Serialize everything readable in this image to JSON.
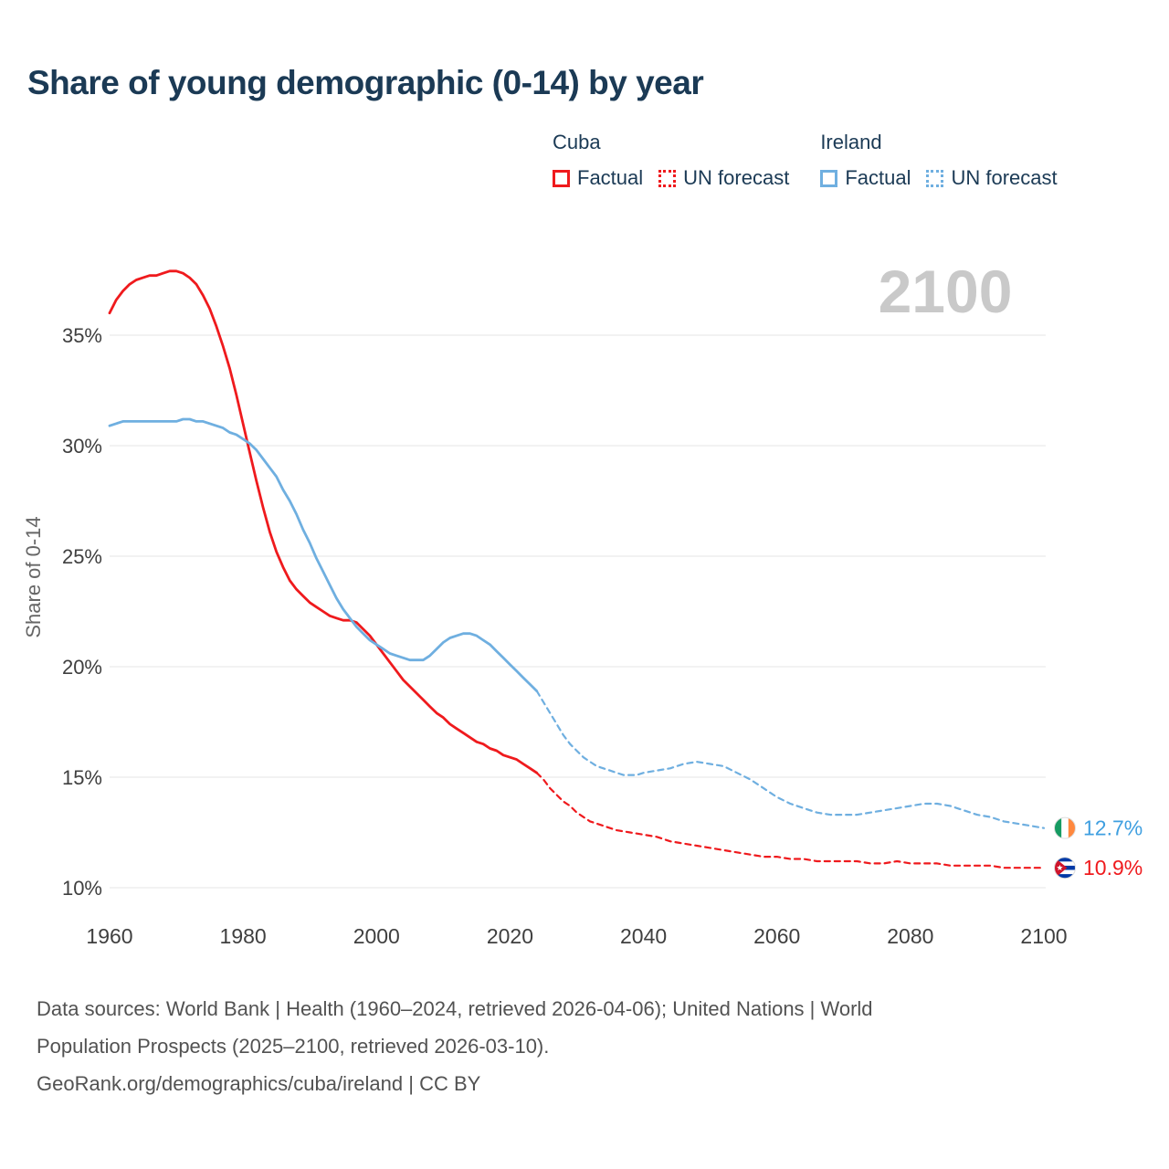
{
  "title": "Share of young demographic (0-14) by year",
  "watermark": "2100",
  "colors": {
    "cuba": "#ef1a1d",
    "ireland": "#6fafe0",
    "ireland_label": "#3f9fe0",
    "title": "#1b3a55",
    "axis_text": "#3f3f3f",
    "ylabel_text": "#666666",
    "grid": "#e6e6e6",
    "watermark": "#c9c9c9",
    "footer": "#525252",
    "flag_ring": "#dddddd"
  },
  "legend": {
    "groups": [
      {
        "country": "Cuba",
        "color_key": "cuba",
        "items": [
          {
            "label": "Factual",
            "style": "solid"
          },
          {
            "label": "UN forecast",
            "style": "dotted"
          }
        ]
      },
      {
        "country": "Ireland",
        "color_key": "ireland",
        "items": [
          {
            "label": "Factual",
            "style": "solid"
          },
          {
            "label": "UN forecast",
            "style": "dotted"
          }
        ]
      }
    ]
  },
  "chart_data": {
    "type": "line",
    "title": "Share of young demographic (0-14) by year",
    "xlabel": "",
    "ylabel": "Share of 0-14",
    "y_ticks": [
      10,
      15,
      20,
      25,
      30,
      35
    ],
    "x_ticks": [
      1960,
      1980,
      2000,
      2020,
      2040,
      2060,
      2080,
      2100
    ],
    "ylim": [
      9.5,
      38.5
    ],
    "xlim": [
      1960,
      2100
    ],
    "grid": "horizontal",
    "series": [
      {
        "name": "Cuba Factual",
        "color_key": "cuba",
        "dash": false,
        "points": [
          [
            1960,
            36.0
          ],
          [
            1961,
            36.6
          ],
          [
            1962,
            37.0
          ],
          [
            1963,
            37.3
          ],
          [
            1964,
            37.5
          ],
          [
            1965,
            37.6
          ],
          [
            1966,
            37.7
          ],
          [
            1967,
            37.7
          ],
          [
            1968,
            37.8
          ],
          [
            1969,
            37.9
          ],
          [
            1970,
            37.9
          ],
          [
            1971,
            37.8
          ],
          [
            1972,
            37.6
          ],
          [
            1973,
            37.3
          ],
          [
            1974,
            36.8
          ],
          [
            1975,
            36.2
          ],
          [
            1976,
            35.4
          ],
          [
            1977,
            34.5
          ],
          [
            1978,
            33.5
          ],
          [
            1979,
            32.3
          ],
          [
            1980,
            31.0
          ],
          [
            1981,
            29.7
          ],
          [
            1982,
            28.4
          ],
          [
            1983,
            27.2
          ],
          [
            1984,
            26.1
          ],
          [
            1985,
            25.2
          ],
          [
            1986,
            24.5
          ],
          [
            1987,
            23.9
          ],
          [
            1988,
            23.5
          ],
          [
            1989,
            23.2
          ],
          [
            1990,
            22.9
          ],
          [
            1991,
            22.7
          ],
          [
            1992,
            22.5
          ],
          [
            1993,
            22.3
          ],
          [
            1994,
            22.2
          ],
          [
            1995,
            22.1
          ],
          [
            1996,
            22.1
          ],
          [
            1997,
            22.0
          ],
          [
            1998,
            21.7
          ],
          [
            1999,
            21.4
          ],
          [
            2000,
            21.0
          ],
          [
            2001,
            20.6
          ],
          [
            2002,
            20.2
          ],
          [
            2003,
            19.8
          ],
          [
            2004,
            19.4
          ],
          [
            2005,
            19.1
          ],
          [
            2006,
            18.8
          ],
          [
            2007,
            18.5
          ],
          [
            2008,
            18.2
          ],
          [
            2009,
            17.9
          ],
          [
            2010,
            17.7
          ],
          [
            2011,
            17.4
          ],
          [
            2012,
            17.2
          ],
          [
            2013,
            17.0
          ],
          [
            2014,
            16.8
          ],
          [
            2015,
            16.6
          ],
          [
            2016,
            16.5
          ],
          [
            2017,
            16.3
          ],
          [
            2018,
            16.2
          ],
          [
            2019,
            16.0
          ],
          [
            2020,
            15.9
          ],
          [
            2021,
            15.8
          ],
          [
            2022,
            15.6
          ],
          [
            2023,
            15.4
          ],
          [
            2024,
            15.2
          ]
        ]
      },
      {
        "name": "Cuba UN forecast",
        "color_key": "cuba",
        "dash": true,
        "points": [
          [
            2024,
            15.2
          ],
          [
            2025,
            14.9
          ],
          [
            2026,
            14.5
          ],
          [
            2027,
            14.2
          ],
          [
            2028,
            13.9
          ],
          [
            2029,
            13.7
          ],
          [
            2030,
            13.4
          ],
          [
            2031,
            13.2
          ],
          [
            2032,
            13.0
          ],
          [
            2033,
            12.9
          ],
          [
            2034,
            12.8
          ],
          [
            2035,
            12.7
          ],
          [
            2036,
            12.6
          ],
          [
            2038,
            12.5
          ],
          [
            2040,
            12.4
          ],
          [
            2042,
            12.3
          ],
          [
            2044,
            12.1
          ],
          [
            2046,
            12.0
          ],
          [
            2048,
            11.9
          ],
          [
            2050,
            11.8
          ],
          [
            2052,
            11.7
          ],
          [
            2054,
            11.6
          ],
          [
            2056,
            11.5
          ],
          [
            2058,
            11.4
          ],
          [
            2060,
            11.4
          ],
          [
            2062,
            11.3
          ],
          [
            2064,
            11.3
          ],
          [
            2066,
            11.2
          ],
          [
            2068,
            11.2
          ],
          [
            2070,
            11.2
          ],
          [
            2072,
            11.2
          ],
          [
            2074,
            11.1
          ],
          [
            2076,
            11.1
          ],
          [
            2078,
            11.2
          ],
          [
            2080,
            11.1
          ],
          [
            2082,
            11.1
          ],
          [
            2084,
            11.1
          ],
          [
            2086,
            11.0
          ],
          [
            2088,
            11.0
          ],
          [
            2090,
            11.0
          ],
          [
            2092,
            11.0
          ],
          [
            2094,
            10.9
          ],
          [
            2096,
            10.9
          ],
          [
            2098,
            10.9
          ],
          [
            2100,
            10.9
          ]
        ]
      },
      {
        "name": "Ireland Factual",
        "color_key": "ireland",
        "dash": false,
        "points": [
          [
            1960,
            30.9
          ],
          [
            1961,
            31.0
          ],
          [
            1962,
            31.1
          ],
          [
            1963,
            31.1
          ],
          [
            1964,
            31.1
          ],
          [
            1965,
            31.1
          ],
          [
            1966,
            31.1
          ],
          [
            1967,
            31.1
          ],
          [
            1968,
            31.1
          ],
          [
            1969,
            31.1
          ],
          [
            1970,
            31.1
          ],
          [
            1971,
            31.2
          ],
          [
            1972,
            31.2
          ],
          [
            1973,
            31.1
          ],
          [
            1974,
            31.1
          ],
          [
            1975,
            31.0
          ],
          [
            1976,
            30.9
          ],
          [
            1977,
            30.8
          ],
          [
            1978,
            30.6
          ],
          [
            1979,
            30.5
          ],
          [
            1980,
            30.3
          ],
          [
            1981,
            30.1
          ],
          [
            1982,
            29.8
          ],
          [
            1983,
            29.4
          ],
          [
            1984,
            29.0
          ],
          [
            1985,
            28.6
          ],
          [
            1986,
            28.0
          ],
          [
            1987,
            27.5
          ],
          [
            1988,
            26.9
          ],
          [
            1989,
            26.2
          ],
          [
            1990,
            25.6
          ],
          [
            1991,
            24.9
          ],
          [
            1992,
            24.3
          ],
          [
            1993,
            23.7
          ],
          [
            1994,
            23.1
          ],
          [
            1995,
            22.6
          ],
          [
            1996,
            22.2
          ],
          [
            1997,
            21.8
          ],
          [
            1998,
            21.5
          ],
          [
            1999,
            21.2
          ],
          [
            2000,
            21.0
          ],
          [
            2001,
            20.8
          ],
          [
            2002,
            20.6
          ],
          [
            2003,
            20.5
          ],
          [
            2004,
            20.4
          ],
          [
            2005,
            20.3
          ],
          [
            2006,
            20.3
          ],
          [
            2007,
            20.3
          ],
          [
            2008,
            20.5
          ],
          [
            2009,
            20.8
          ],
          [
            2010,
            21.1
          ],
          [
            2011,
            21.3
          ],
          [
            2012,
            21.4
          ],
          [
            2013,
            21.5
          ],
          [
            2014,
            21.5
          ],
          [
            2015,
            21.4
          ],
          [
            2016,
            21.2
          ],
          [
            2017,
            21.0
          ],
          [
            2018,
            20.7
          ],
          [
            2019,
            20.4
          ],
          [
            2020,
            20.1
          ],
          [
            2021,
            19.8
          ],
          [
            2022,
            19.5
          ],
          [
            2023,
            19.2
          ],
          [
            2024,
            18.9
          ]
        ]
      },
      {
        "name": "Ireland UN forecast",
        "color_key": "ireland",
        "dash": true,
        "points": [
          [
            2024,
            18.9
          ],
          [
            2025,
            18.4
          ],
          [
            2026,
            17.9
          ],
          [
            2027,
            17.4
          ],
          [
            2028,
            16.9
          ],
          [
            2029,
            16.5
          ],
          [
            2030,
            16.2
          ],
          [
            2031,
            15.9
          ],
          [
            2032,
            15.7
          ],
          [
            2033,
            15.5
          ],
          [
            2034,
            15.4
          ],
          [
            2035,
            15.3
          ],
          [
            2036,
            15.2
          ],
          [
            2037,
            15.1
          ],
          [
            2038,
            15.1
          ],
          [
            2039,
            15.1
          ],
          [
            2040,
            15.2
          ],
          [
            2042,
            15.3
          ],
          [
            2044,
            15.4
          ],
          [
            2046,
            15.6
          ],
          [
            2048,
            15.7
          ],
          [
            2050,
            15.6
          ],
          [
            2052,
            15.5
          ],
          [
            2054,
            15.2
          ],
          [
            2056,
            14.9
          ],
          [
            2058,
            14.5
          ],
          [
            2060,
            14.1
          ],
          [
            2062,
            13.8
          ],
          [
            2064,
            13.6
          ],
          [
            2066,
            13.4
          ],
          [
            2068,
            13.3
          ],
          [
            2070,
            13.3
          ],
          [
            2072,
            13.3
          ],
          [
            2074,
            13.4
          ],
          [
            2076,
            13.5
          ],
          [
            2078,
            13.6
          ],
          [
            2080,
            13.7
          ],
          [
            2082,
            13.8
          ],
          [
            2084,
            13.8
          ],
          [
            2086,
            13.7
          ],
          [
            2088,
            13.5
          ],
          [
            2090,
            13.3
          ],
          [
            2092,
            13.2
          ],
          [
            2094,
            13.0
          ],
          [
            2096,
            12.9
          ],
          [
            2098,
            12.8
          ],
          [
            2100,
            12.7
          ]
        ]
      }
    ],
    "end_labels": [
      {
        "country": "Ireland",
        "flag": "ireland",
        "value": 12.7,
        "value_label": "12.7%",
        "color_key": "ireland_label"
      },
      {
        "country": "Cuba",
        "flag": "cuba",
        "value": 10.9,
        "value_label": "10.9%",
        "color_key": "cuba"
      }
    ]
  },
  "footer": {
    "lines": [
      "Data sources: World Bank | Health (1960–2024, retrieved 2026-04-06); United Nations | World",
      "Population Prospects (2025–2100, retrieved 2026-03-10).",
      "GeoRank.org/demographics/cuba/ireland | CC BY"
    ]
  }
}
